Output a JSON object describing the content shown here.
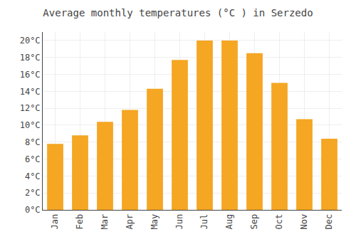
{
  "chart_data": {
    "type": "bar",
    "title": "Average monthly temperatures (°C ) in Serzedo",
    "categories": [
      "Jan",
      "Feb",
      "Mar",
      "Apr",
      "May",
      "Jun",
      "Jul",
      "Aug",
      "Sep",
      "Oct",
      "Nov",
      "Dec"
    ],
    "values": [
      7.8,
      8.8,
      10.4,
      11.8,
      14.3,
      17.7,
      20.0,
      20.0,
      18.5,
      15.0,
      10.7,
      8.4
    ],
    "color": "#F5A623",
    "ylim": [
      0,
      21
    ],
    "yticks": [
      {
        "value": 0,
        "label": "0°C"
      },
      {
        "value": 2,
        "label": "2°C"
      },
      {
        "value": 4,
        "label": "4°C"
      },
      {
        "value": 6,
        "label": "6°C"
      },
      {
        "value": 8,
        "label": "8°C"
      },
      {
        "value": 10,
        "label": "10°C"
      },
      {
        "value": 12,
        "label": "12°C"
      },
      {
        "value": 14,
        "label": "14°C"
      },
      {
        "value": 16,
        "label": "16°C"
      },
      {
        "value": 18,
        "label": "18°C"
      },
      {
        "value": 20,
        "label": "20°C"
      }
    ],
    "grid": true
  }
}
